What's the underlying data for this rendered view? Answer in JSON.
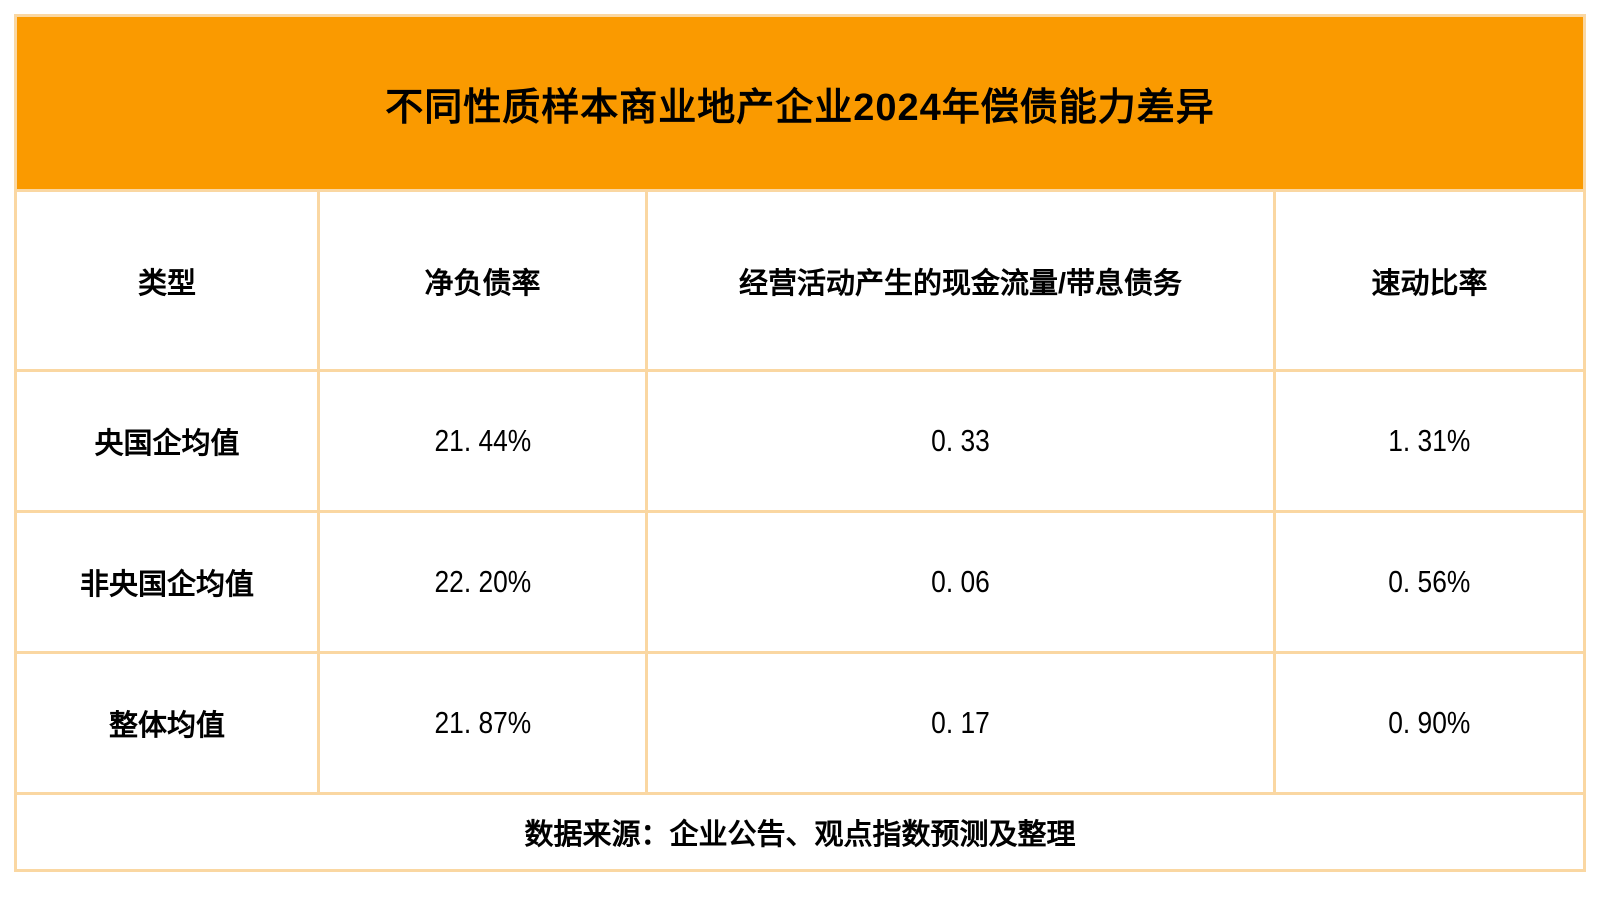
{
  "header": {
    "title": "不同性质样本商业地产企业2024年偿债能力差异"
  },
  "columns": [
    {
      "label": "类型"
    },
    {
      "label": "净负债率"
    },
    {
      "label": "经营活动产生的现金流量/带息债务"
    },
    {
      "label": "速动比率"
    }
  ],
  "rows": [
    {
      "cells": [
        "央国企均值",
        "21. 44%",
        "0. 33",
        "1. 31%"
      ]
    },
    {
      "cells": [
        "非央国企均值",
        "22. 20%",
        "0. 06",
        "0. 56%"
      ]
    },
    {
      "cells": [
        "整体均值",
        "21. 87%",
        "0. 17",
        "0. 90%"
      ]
    }
  ],
  "footer": {
    "text": "数据来源：企业公告、观点指数预测及整理"
  },
  "colors": {
    "title_bar_bg": "#fa9a00",
    "gridline": "#fad7a2",
    "cell_bg": "#ffffff",
    "text": "#000000"
  },
  "chart_data": {
    "type": "table",
    "title": "不同性质样本商业地产企业2024年偿债能力差异",
    "columns": [
      "类型",
      "净负债率",
      "经营活动产生的现金流量/带息债务",
      "速动比率"
    ],
    "rows": [
      [
        "央国企均值",
        "21.44%",
        "0.33",
        "1.31%"
      ],
      [
        "非央国企均值",
        "22.20%",
        "0.06",
        "0.56%"
      ],
      [
        "整体均值",
        "21.87%",
        "0.17",
        "0.90%"
      ]
    ],
    "source_note": "数据来源：企业公告、观点指数预测及整理"
  }
}
